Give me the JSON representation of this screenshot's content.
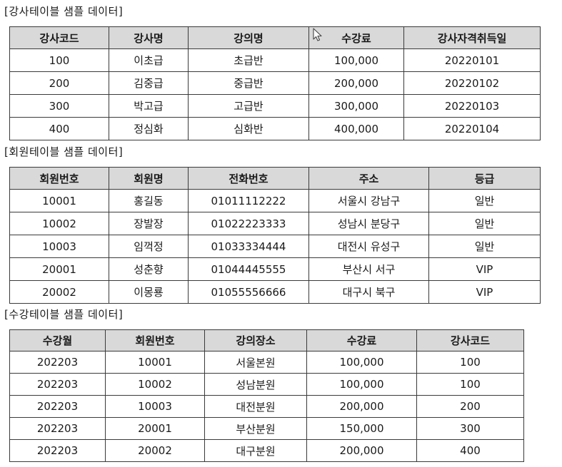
{
  "sections": [
    {
      "caption": "[강사테이블 샘플 데이터]",
      "headers": [
        "강사코드",
        "강사명",
        "강의명",
        "수강료",
        "강사자격취득일"
      ],
      "rows": [
        [
          "100",
          "이초급",
          "초급반",
          "100,000",
          "20220101"
        ],
        [
          "200",
          "김중급",
          "중급반",
          "200,000",
          "20220102"
        ],
        [
          "300",
          "박고급",
          "고급반",
          "300,000",
          "20220103"
        ],
        [
          "400",
          "정심화",
          "심화반",
          "400,000",
          "20220104"
        ]
      ]
    },
    {
      "caption": "[회원테이블 샘플 데이터]",
      "headers": [
        "회원번호",
        "회원명",
        "전화번호",
        "주소",
        "등급"
      ],
      "rows": [
        [
          "10001",
          "홍길동",
          "01011112222",
          "서울시 강남구",
          "일반"
        ],
        [
          "10002",
          "장발장",
          "01022223333",
          "성남시 분당구",
          "일반"
        ],
        [
          "10003",
          "임꺽정",
          "01033334444",
          "대전시 유성구",
          "일반"
        ],
        [
          "20001",
          "성춘향",
          "01044445555",
          "부산시 서구",
          "VIP"
        ],
        [
          "20002",
          "이몽룡",
          "01055556666",
          "대구시 북구",
          "VIP"
        ]
      ]
    },
    {
      "caption": "[수강테이블 샘플 데이터]",
      "headers": [
        "수강월",
        "회원번호",
        "강의장소",
        "수강료",
        "강사코드"
      ],
      "rows": [
        [
          "202203",
          "10001",
          "서울본원",
          "100,000",
          "100"
        ],
        [
          "202203",
          "10002",
          "성남분원",
          "100,000",
          "100"
        ],
        [
          "202203",
          "10003",
          "대전분원",
          "200,000",
          "200"
        ],
        [
          "202203",
          "20001",
          "부산분원",
          "150,000",
          "300"
        ],
        [
          "202203",
          "20002",
          "대구분원",
          "200,000",
          "400"
        ]
      ]
    }
  ],
  "cursor_icon": "mouse-pointer-icon"
}
